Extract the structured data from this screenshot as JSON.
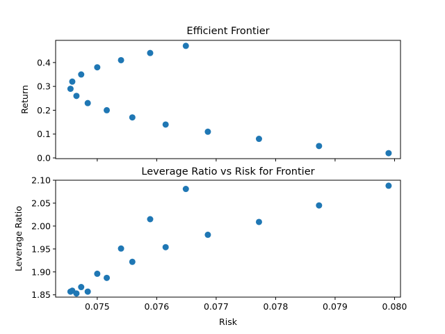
{
  "chart_data": [
    {
      "type": "scatter",
      "title": "Efficient Frontier",
      "xlabel": "",
      "ylabel": "Return",
      "xlim": [
        0.0743,
        0.0801
      ],
      "ylim": [
        -0.003,
        0.493
      ],
      "xticks": [
        0.075,
        0.076,
        0.077,
        0.078,
        0.079,
        0.08
      ],
      "xtick_labels_visible": false,
      "yticks": [
        0.0,
        0.1,
        0.2,
        0.3,
        0.4
      ],
      "ytick_labels": [
        "0.0",
        "0.1",
        "0.2",
        "0.3",
        "0.4"
      ],
      "grid": false,
      "color": "#1f77b4",
      "points": [
        {
          "x": 0.07455,
          "y": 0.29
        },
        {
          "x": 0.07458,
          "y": 0.32
        },
        {
          "x": 0.07465,
          "y": 0.26
        },
        {
          "x": 0.07473,
          "y": 0.35
        },
        {
          "x": 0.07484,
          "y": 0.23
        },
        {
          "x": 0.075,
          "y": 0.38
        },
        {
          "x": 0.07516,
          "y": 0.2
        },
        {
          "x": 0.0754,
          "y": 0.41
        },
        {
          "x": 0.07559,
          "y": 0.17
        },
        {
          "x": 0.07589,
          "y": 0.44
        },
        {
          "x": 0.07615,
          "y": 0.14
        },
        {
          "x": 0.07649,
          "y": 0.47
        },
        {
          "x": 0.07686,
          "y": 0.11
        },
        {
          "x": 0.07772,
          "y": 0.08
        },
        {
          "x": 0.07873,
          "y": 0.05
        },
        {
          "x": 0.0799,
          "y": 0.02
        }
      ]
    },
    {
      "type": "scatter",
      "title": "Leverage Ratio vs Risk for Frontier",
      "xlabel": "Risk",
      "ylabel": "Leverage Ratio",
      "xlim": [
        0.0743,
        0.0801
      ],
      "ylim": [
        1.845,
        2.1
      ],
      "xticks": [
        0.075,
        0.076,
        0.077,
        0.078,
        0.079,
        0.08
      ],
      "xtick_labels": [
        "0.075",
        "0.076",
        "0.077",
        "0.078",
        "0.079",
        "0.080"
      ],
      "yticks": [
        1.85,
        1.9,
        1.95,
        2.0,
        2.05,
        2.1
      ],
      "ytick_labels": [
        "1.85",
        "1.90",
        "1.95",
        "2.00",
        "2.05",
        "2.10"
      ],
      "grid": false,
      "color": "#1f77b4",
      "points": [
        {
          "x": 0.07455,
          "y": 1.857
        },
        {
          "x": 0.07458,
          "y": 1.859
        },
        {
          "x": 0.07465,
          "y": 1.853
        },
        {
          "x": 0.07473,
          "y": 1.867
        },
        {
          "x": 0.07484,
          "y": 1.857
        },
        {
          "x": 0.075,
          "y": 1.896
        },
        {
          "x": 0.07516,
          "y": 1.887
        },
        {
          "x": 0.0754,
          "y": 1.951
        },
        {
          "x": 0.07559,
          "y": 1.922
        },
        {
          "x": 0.07589,
          "y": 2.015
        },
        {
          "x": 0.07615,
          "y": 1.954
        },
        {
          "x": 0.07649,
          "y": 2.081
        },
        {
          "x": 0.07686,
          "y": 1.981
        },
        {
          "x": 0.07772,
          "y": 2.009
        },
        {
          "x": 0.07873,
          "y": 2.045
        },
        {
          "x": 0.0799,
          "y": 2.088
        }
      ]
    }
  ]
}
